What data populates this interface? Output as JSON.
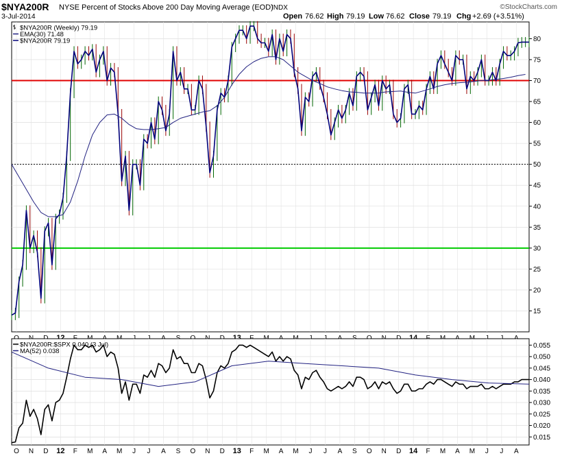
{
  "header": {
    "symbol": "$NYA200R",
    "description": "NYSE Percent of Stocks Above 200 Day Moving Average (EOD)",
    "exchange": "INDX",
    "watermark": "©StockCharts.com",
    "date": "3-Jul-2014",
    "open_label": "Open",
    "open": "76.62",
    "high_label": "High",
    "high": "79.19",
    "low_label": "Low",
    "low": "76.62",
    "close_label": "Close",
    "close": "79.19",
    "chg_label": "Chg",
    "chg": "+2.69 (+3.51%)"
  },
  "chart_data": [
    {
      "type": "line",
      "panel": "main",
      "ylim": [
        10,
        84
      ],
      "ytick_labels": [
        "15",
        "20",
        "25",
        "30",
        "35",
        "40",
        "45",
        "50",
        "55",
        "60",
        "65",
        "70",
        "75",
        "80"
      ],
      "xtick_labels": [
        "O",
        "N",
        "D",
        "12",
        "F",
        "M",
        "A",
        "M",
        "J",
        "J",
        "A",
        "S",
        "O",
        "N",
        "D",
        "13",
        "F",
        "M",
        "A",
        "M",
        "J",
        "J",
        "A",
        "S",
        "O",
        "N",
        "D",
        "14",
        "F",
        "M",
        "A",
        "M",
        "J",
        "J",
        "A"
      ],
      "legend": [
        {
          "text": "$NYA200R (Weekly) 79.19",
          "color": "#000000",
          "marker": "bar"
        },
        {
          "text": "EMA(30) 71.48",
          "color": "#202080",
          "marker": "line"
        },
        {
          "text": "$NYA200R 79.19",
          "color": "#00007a",
          "marker": "line"
        }
      ],
      "reference_lines": [
        {
          "value": 70,
          "color": "#e00000",
          "style": "solid"
        },
        {
          "value": 30,
          "color": "#00cc00",
          "style": "solid"
        },
        {
          "value": 50,
          "color": "#000000",
          "style": "dotted"
        }
      ],
      "series": [
        {
          "name": "$NYA200R",
          "color": "#00007a",
          "x": [
            0,
            1,
            2,
            3,
            4,
            5,
            6,
            7,
            8,
            9,
            10,
            11,
            12,
            13,
            14,
            15,
            16,
            17,
            18,
            19,
            20,
            21,
            22,
            23,
            24,
            25,
            26,
            27,
            28,
            29,
            30,
            31,
            32,
            33,
            34,
            35,
            36,
            37,
            38,
            39,
            40,
            41,
            42,
            43,
            44,
            45,
            46,
            47,
            48,
            49,
            50,
            51,
            52,
            53,
            54,
            55,
            56,
            57,
            58,
            59,
            60,
            61,
            62,
            63,
            64,
            65,
            66,
            67,
            68,
            69,
            70,
            71,
            72,
            73,
            74,
            75,
            76,
            77,
            78,
            79,
            80,
            81,
            82,
            83,
            84,
            85,
            86,
            87,
            88,
            89,
            90,
            91,
            92,
            93,
            94,
            95,
            96,
            97,
            98,
            99,
            100,
            101,
            102,
            103,
            104,
            105,
            106,
            107,
            108,
            109,
            110,
            111,
            112,
            113,
            114,
            115,
            116,
            117,
            118,
            119,
            120,
            121,
            122,
            123,
            124,
            125,
            126,
            127,
            128,
            129,
            130,
            131,
            132,
            133,
            134,
            135,
            136,
            137,
            138,
            139,
            140,
            141
          ],
          "values": [
            14,
            14.5,
            22,
            26,
            39,
            30,
            33,
            29,
            18,
            34,
            36,
            26,
            37,
            38,
            42,
            52,
            67,
            77,
            74,
            75,
            77,
            76,
            77.5,
            72,
            75,
            77,
            70,
            73,
            72,
            62,
            46,
            52,
            39,
            50,
            50,
            45,
            56,
            55,
            60,
            56,
            65,
            63,
            58,
            62,
            77,
            70,
            72,
            68,
            68,
            63,
            63,
            70,
            68,
            59,
            48,
            52,
            63,
            67,
            66,
            70,
            78,
            80,
            82,
            82,
            80,
            83,
            83,
            80,
            79,
            79,
            77,
            81,
            75,
            80,
            77,
            81,
            80,
            72,
            68,
            58,
            66,
            65,
            71,
            72,
            69,
            66,
            62,
            57,
            60,
            63,
            61,
            63,
            67,
            64,
            71,
            72,
            71,
            63,
            66,
            69,
            64,
            70,
            68,
            69,
            62,
            60,
            61,
            68,
            69,
            62,
            62,
            64,
            63,
            68,
            71,
            68,
            74,
            76,
            74,
            72,
            70,
            76,
            75,
            75,
            68,
            71,
            70,
            72,
            75,
            70,
            70,
            72,
            70,
            74,
            77,
            76,
            76,
            77,
            79,
            79.19,
            79.19,
            79.19
          ]
        },
        {
          "name": "EMA(30)",
          "color": "#202080",
          "x": [
            0,
            2,
            4,
            6,
            8,
            10,
            12,
            14,
            16,
            18,
            20,
            22,
            24,
            26,
            28,
            30,
            32,
            34,
            36,
            38,
            40,
            42,
            44,
            46,
            48,
            50,
            52,
            54,
            56,
            58,
            60,
            62,
            64,
            66,
            68,
            70,
            72,
            74,
            76,
            78,
            80,
            82,
            84,
            86,
            88,
            90,
            92,
            94,
            96,
            98,
            100,
            102,
            104,
            106,
            108,
            110,
            112,
            114,
            116,
            118,
            120,
            122,
            124,
            126,
            128,
            130,
            132,
            134,
            136,
            138,
            140
          ],
          "values": [
            50,
            47,
            44,
            41,
            38.5,
            37.5,
            37.5,
            38,
            41,
            46,
            52,
            57,
            60,
            61.8,
            62,
            61,
            59.5,
            58.5,
            58.3,
            58.3,
            58.5,
            58.8,
            60,
            61,
            61.5,
            62,
            62.5,
            62.8,
            64,
            66,
            69,
            71.5,
            73.3,
            74.5,
            75.3,
            75.7,
            75.7,
            75,
            73.5,
            72,
            71,
            70,
            69.3,
            68.5,
            68,
            67.6,
            67.3,
            67.2,
            67,
            67,
            67,
            67.3,
            67.4,
            67.5,
            67.2,
            67,
            67.5,
            68,
            68.6,
            69,
            69.3,
            69.5,
            69.6,
            69.8,
            70,
            70.1,
            70.3,
            70.5,
            70.8,
            71.2,
            71.48
          ]
        }
      ]
    },
    {
      "type": "line",
      "panel": "ratio",
      "ylim": [
        0.0115,
        0.0578
      ],
      "ytick_labels": [
        "0.015",
        "0.020",
        "0.025",
        "0.030",
        "0.035",
        "0.040",
        "0.045",
        "0.050",
        "0.055"
      ],
      "xtick_labels": [
        "O",
        "N",
        "D",
        "12",
        "F",
        "M",
        "A",
        "M",
        "J",
        "J",
        "A",
        "S",
        "O",
        "N",
        "D",
        "13",
        "F",
        "M",
        "A",
        "M",
        "J",
        "J",
        "A",
        "S",
        "O",
        "N",
        "D",
        "14",
        "F",
        "M",
        "A",
        "M",
        "J",
        "J",
        "A"
      ],
      "legend": [
        {
          "text": "$NYA200R:$SPX 0.040 (3 Jul)",
          "color": "#000000",
          "marker": "line"
        },
        {
          "text": "MA(52) 0.038",
          "color": "#202080",
          "marker": "line"
        }
      ],
      "series": [
        {
          "name": "$NYA200R:$SPX",
          "color": "#000000",
          "x": [
            0,
            1,
            2,
            3,
            4,
            5,
            6,
            7,
            8,
            9,
            10,
            11,
            12,
            13,
            14,
            15,
            16,
            17,
            18,
            19,
            20,
            21,
            22,
            23,
            24,
            25,
            26,
            27,
            28,
            29,
            30,
            31,
            32,
            33,
            34,
            35,
            36,
            37,
            38,
            39,
            40,
            41,
            42,
            43,
            44,
            45,
            46,
            47,
            48,
            49,
            50,
            51,
            52,
            53,
            54,
            55,
            56,
            57,
            58,
            59,
            60,
            61,
            62,
            63,
            64,
            65,
            66,
            67,
            68,
            69,
            70,
            71,
            72,
            73,
            74,
            75,
            76,
            77,
            78,
            79,
            80,
            81,
            82,
            83,
            84,
            85,
            86,
            87,
            88,
            89,
            90,
            91,
            92,
            93,
            94,
            95,
            96,
            97,
            98,
            99,
            100,
            101,
            102,
            103,
            104,
            105,
            106,
            107,
            108,
            109,
            110,
            111,
            112,
            113,
            114,
            115,
            116,
            117,
            118,
            119,
            120,
            121,
            122,
            123,
            124,
            125,
            126,
            127,
            128,
            129,
            130,
            131,
            132,
            133,
            134,
            135,
            136,
            137,
            138,
            139,
            140,
            141
          ],
          "values": [
            0.0125,
            0.0128,
            0.019,
            0.021,
            0.031,
            0.024,
            0.027,
            0.023,
            0.016,
            0.027,
            0.029,
            0.022,
            0.03,
            0.031,
            0.034,
            0.041,
            0.049,
            0.055,
            0.053,
            0.053,
            0.055,
            0.054,
            0.055,
            0.052,
            0.053,
            0.055,
            0.05,
            0.052,
            0.051,
            0.045,
            0.034,
            0.039,
            0.031,
            0.038,
            0.038,
            0.034,
            0.042,
            0.041,
            0.044,
            0.041,
            0.047,
            0.046,
            0.043,
            0.045,
            0.053,
            0.049,
            0.05,
            0.047,
            0.047,
            0.043,
            0.043,
            0.047,
            0.046,
            0.04,
            0.032,
            0.035,
            0.043,
            0.046,
            0.045,
            0.047,
            0.052,
            0.053,
            0.055,
            0.055,
            0.054,
            0.055,
            0.054,
            0.053,
            0.052,
            0.051,
            0.05,
            0.052,
            0.048,
            0.05,
            0.048,
            0.05,
            0.049,
            0.044,
            0.042,
            0.036,
            0.041,
            0.04,
            0.043,
            0.044,
            0.041,
            0.039,
            0.036,
            0.035,
            0.036,
            0.037,
            0.036,
            0.037,
            0.039,
            0.037,
            0.041,
            0.041,
            0.04,
            0.036,
            0.037,
            0.039,
            0.036,
            0.039,
            0.038,
            0.039,
            0.036,
            0.034,
            0.035,
            0.038,
            0.038,
            0.035,
            0.035,
            0.036,
            0.036,
            0.038,
            0.039,
            0.038,
            0.04,
            0.04,
            0.039,
            0.038,
            0.037,
            0.039,
            0.038,
            0.038,
            0.036,
            0.037,
            0.037,
            0.037,
            0.038,
            0.036,
            0.036,
            0.037,
            0.036,
            0.037,
            0.038,
            0.038,
            0.038,
            0.039,
            0.039,
            0.04,
            0.04,
            0.04
          ]
        },
        {
          "name": "MA(52)",
          "color": "#202080",
          "x": [
            0,
            10,
            20,
            30,
            40,
            50,
            60,
            70,
            80,
            90,
            100,
            110,
            120,
            130,
            141
          ],
          "values": [
            0.052,
            0.045,
            0.041,
            0.04,
            0.037,
            0.039,
            0.046,
            0.048,
            0.047,
            0.046,
            0.045,
            0.042,
            0.04,
            0.0385,
            0.038
          ]
        }
      ]
    }
  ]
}
